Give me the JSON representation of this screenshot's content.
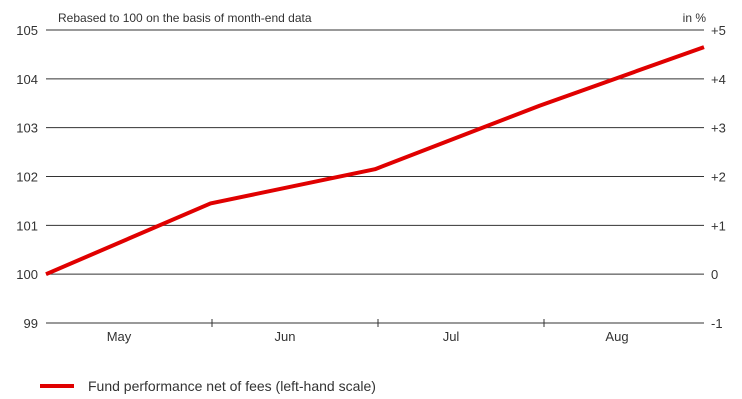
{
  "chart_data": {
    "type": "line",
    "subtitle": "Rebased to 100 on the basis of month-end data",
    "right_axis_unit": "in %",
    "x_categories": [
      "May",
      "Jun",
      "Jul",
      "Aug"
    ],
    "left_ticks": [
      "105",
      "104",
      "103",
      "102",
      "101",
      "100",
      "99"
    ],
    "right_ticks": [
      "+5",
      "+4",
      "+3",
      "+2",
      "+1",
      "0",
      "-1"
    ],
    "ylim": [
      99,
      105
    ],
    "grid": true,
    "series": [
      {
        "name": "Fund performance net of fees (left-hand scale)",
        "color": "#e00000",
        "x": [
          0,
          1,
          2,
          3,
          4
        ],
        "y": [
          100.0,
          101.45,
          102.15,
          103.45,
          104.65
        ]
      }
    ],
    "legend_position": "bottom-left"
  }
}
